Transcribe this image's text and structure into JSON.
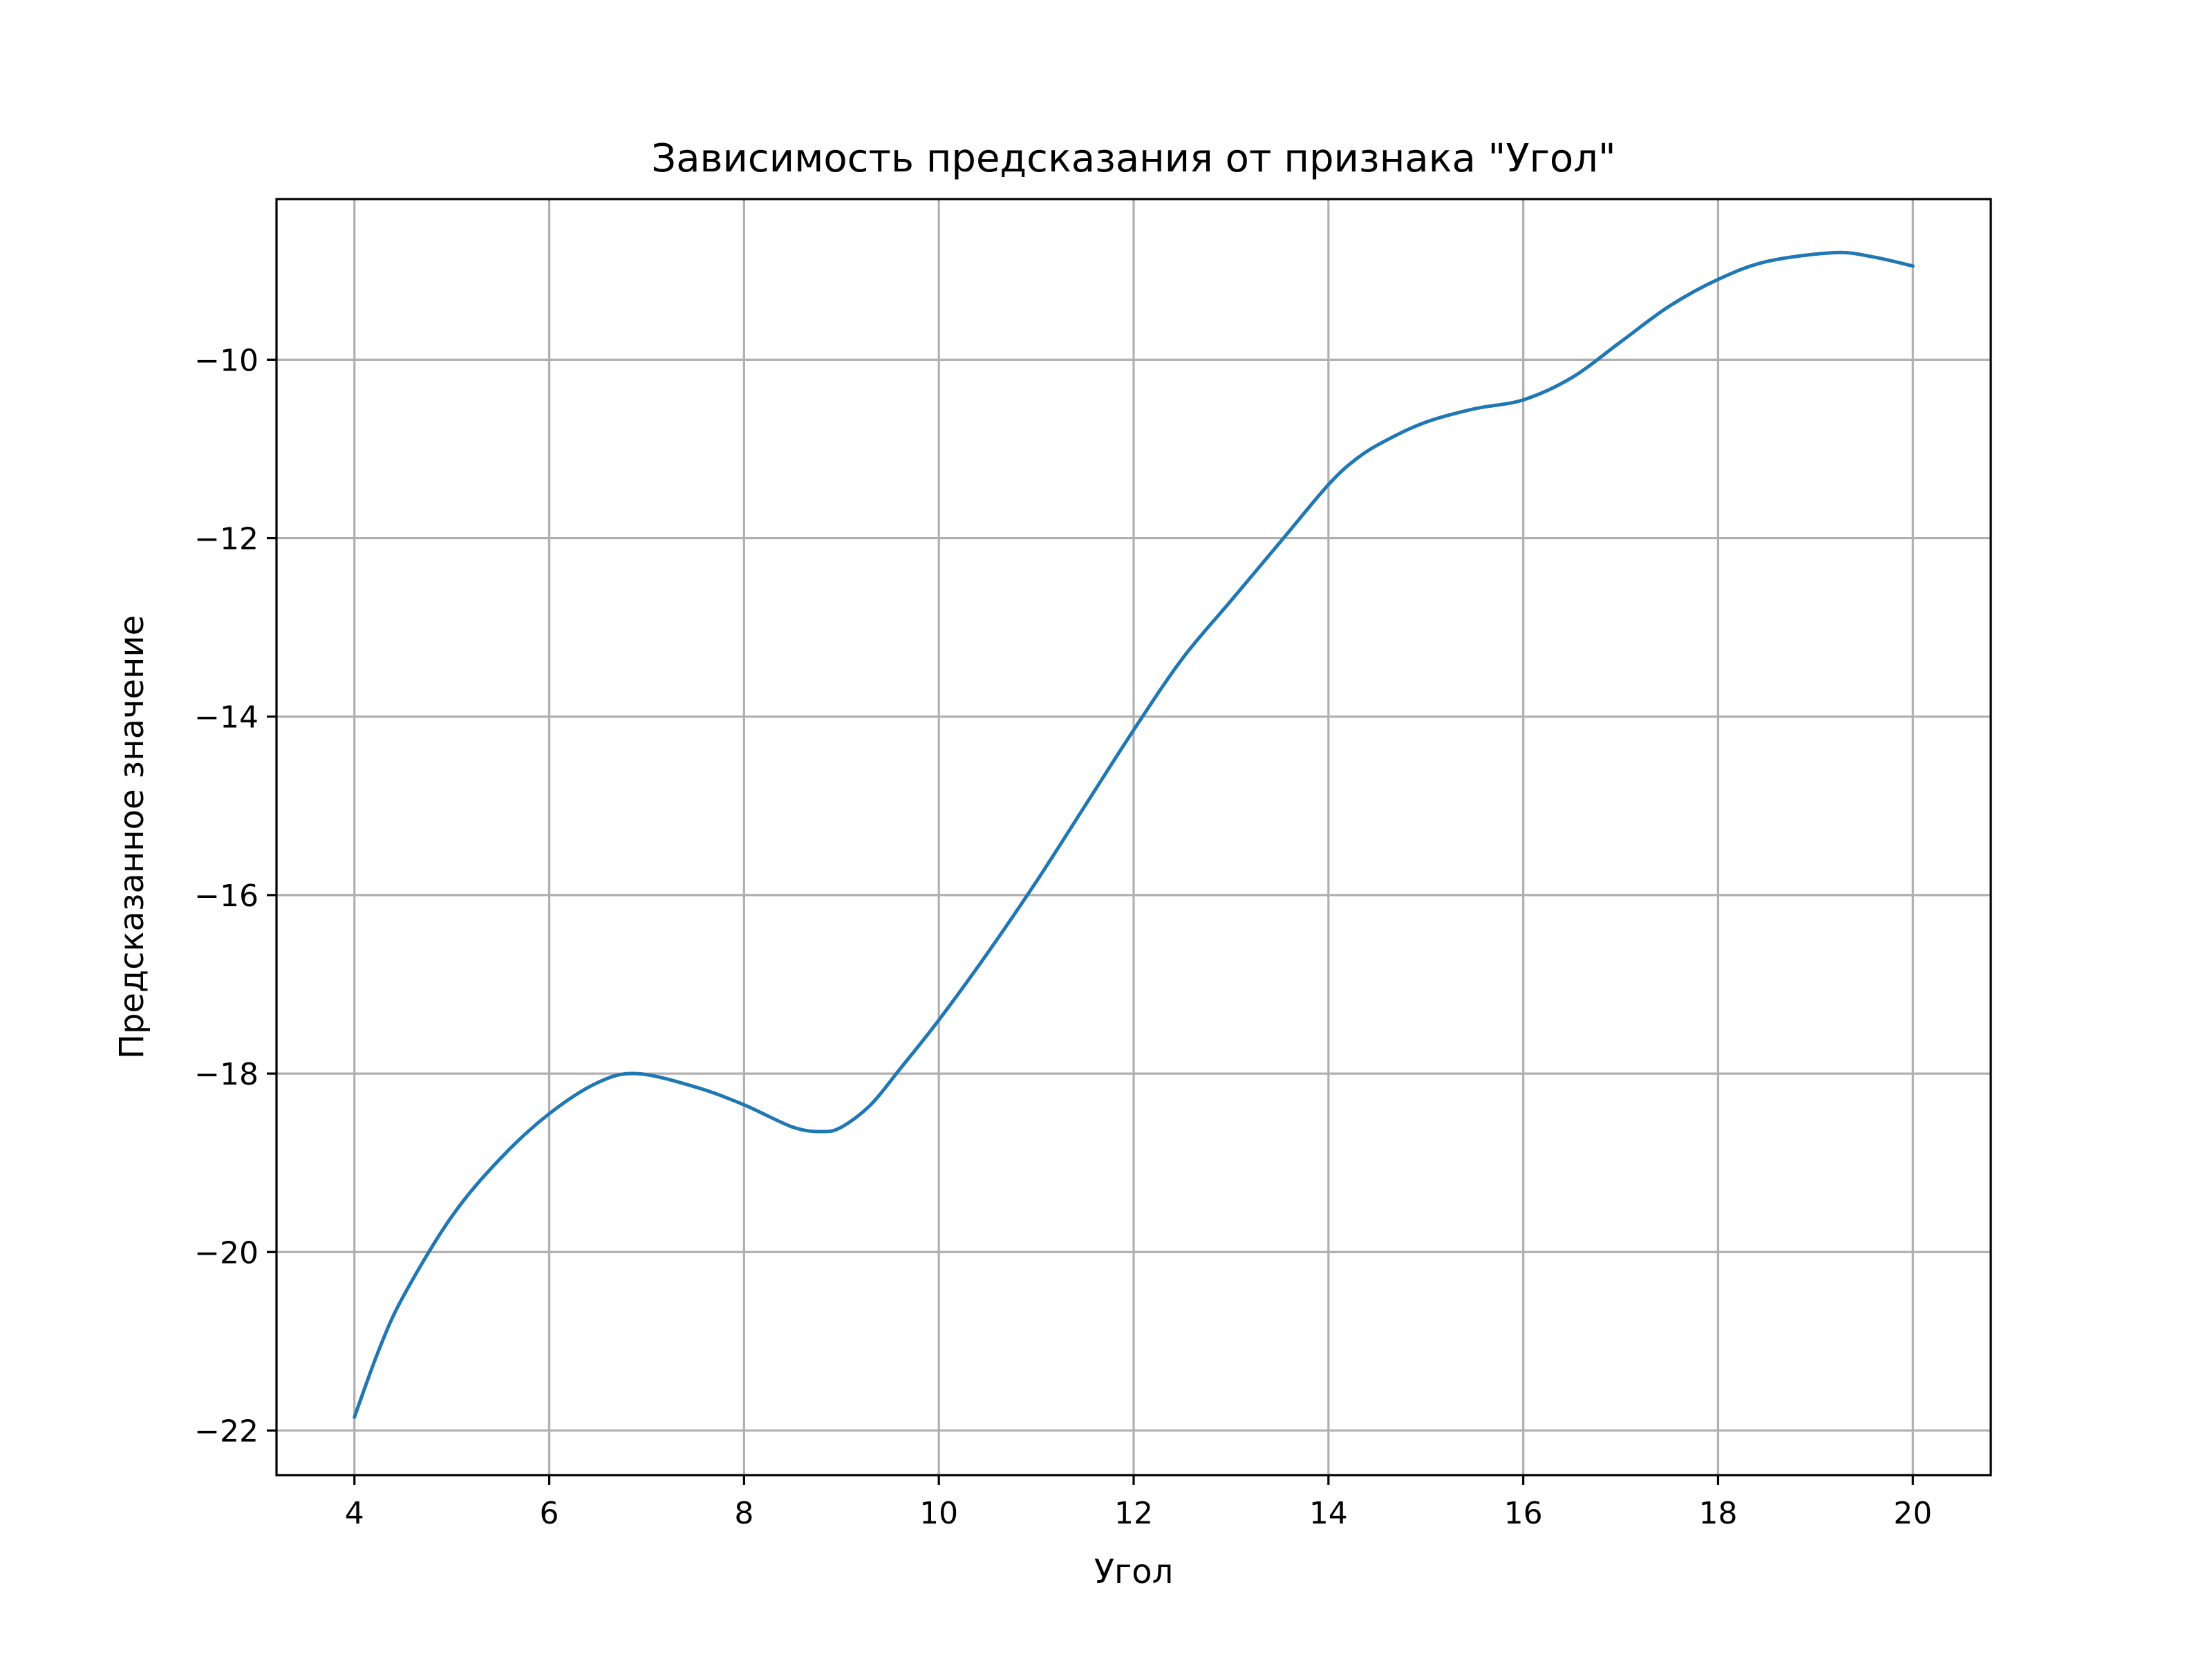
{
  "chart_data": {
    "type": "line",
    "title": "Зависимость предсказания от признака \"Угол\"",
    "xlabel": "Угол",
    "ylabel": "Предсказанное значение",
    "xlim": [
      3.2,
      20.8
    ],
    "ylim": [
      -22.5,
      -8.2
    ],
    "xticks": [
      4,
      6,
      8,
      10,
      12,
      14,
      16,
      18,
      20
    ],
    "xtick_labels": [
      "4",
      "6",
      "8",
      "10",
      "12",
      "14",
      "16",
      "18",
      "20"
    ],
    "yticks": [
      -22,
      -20,
      -18,
      -16,
      -14,
      -12,
      -10
    ],
    "ytick_labels": [
      "−22",
      "−20",
      "−18",
      "−16",
      "−14",
      "−12",
      "−10"
    ],
    "grid": true,
    "series_color": "#1f77b4",
    "series": [
      {
        "x": [
          4.0,
          4.25,
          4.5,
          5.0,
          5.5,
          6.0,
          6.5,
          6.9,
          7.5,
          8.0,
          8.5,
          8.8,
          9.0,
          9.3,
          9.6,
          10.0,
          10.5,
          11.0,
          11.5,
          12.0,
          12.5,
          13.0,
          13.5,
          14.0,
          14.3,
          14.6,
          15.0,
          15.5,
          16.0,
          16.5,
          17.0,
          17.5,
          18.0,
          18.5,
          19.2,
          19.6,
          20.0
        ],
        "y": [
          -21.85,
          -21.1,
          -20.5,
          -19.6,
          -18.95,
          -18.45,
          -18.1,
          -18.0,
          -18.15,
          -18.35,
          -18.6,
          -18.65,
          -18.6,
          -18.35,
          -17.95,
          -17.4,
          -16.65,
          -15.85,
          -15.0,
          -14.15,
          -13.35,
          -12.7,
          -12.05,
          -11.4,
          -11.1,
          -10.9,
          -10.7,
          -10.55,
          -10.45,
          -10.2,
          -9.8,
          -9.4,
          -9.1,
          -8.9,
          -8.8,
          -8.85,
          -8.95
        ]
      }
    ]
  }
}
